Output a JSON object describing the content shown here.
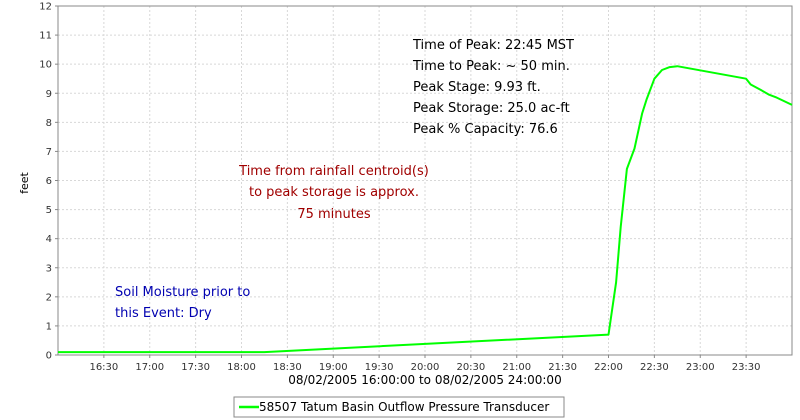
{
  "chart_data": {
    "type": "line",
    "title": "",
    "xlabel": "08/02/2005 16:00:00 to 08/02/2005 24:00:00",
    "ylabel": "feet",
    "xlim": [
      "16:00",
      "24:00"
    ],
    "ylim": [
      0,
      12
    ],
    "yticks": [
      "0",
      "1",
      "2",
      "3",
      "4",
      "5",
      "6",
      "7",
      "8",
      "9",
      "10",
      "11",
      "12"
    ],
    "xticks": [
      "16:30",
      "17:00",
      "17:30",
      "18:00",
      "18:30",
      "19:00",
      "19:30",
      "20:00",
      "20:30",
      "21:00",
      "21:30",
      "22:00",
      "22:30",
      "23:00",
      "23:30"
    ],
    "grid": true,
    "legend_position": "bottom-center",
    "series": [
      {
        "name": "58507 Tatum Basin Outflow Pressure Transducer",
        "color": "#00ff00",
        "x": [
          "16:00",
          "18:15",
          "22:00",
          "22:05",
          "22:08",
          "22:12",
          "22:17",
          "22:22",
          "22:25",
          "22:30",
          "22:35",
          "22:40",
          "22:45",
          "23:30",
          "23:33",
          "23:40",
          "23:45",
          "23:50",
          "24:00"
        ],
        "y": [
          0.1,
          0.1,
          0.7,
          2.5,
          4.4,
          6.4,
          7.1,
          8.3,
          8.8,
          9.5,
          9.8,
          9.9,
          9.93,
          9.5,
          9.3,
          9.1,
          8.95,
          8.85,
          8.6
        ]
      }
    ],
    "annotations": {
      "peak_info": [
        "Time of Peak: 22:45 MST",
        "Time to Peak: ~ 50 min.",
        "Peak Stage: 9.93 ft.",
        "Peak Storage: 25.0 ac-ft",
        "Peak % Capacity: 76.6"
      ],
      "rainfall_note": [
        "Time from rainfall centroid(s)",
        "to peak storage is approx.",
        "75 minutes"
      ],
      "soil_note": [
        "Soil Moisture prior to",
        "this Event: Dry"
      ]
    }
  },
  "colors": {
    "grid": "#d8d8d8",
    "axis": "#888888",
    "red_note": "#a00000",
    "blue_note": "#0000b0"
  }
}
